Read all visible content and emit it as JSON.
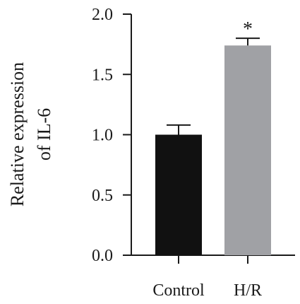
{
  "chart_data": {
    "type": "bar",
    "categories": [
      "Control",
      "H/R"
    ],
    "values": [
      1.0,
      1.74
    ],
    "errors": [
      0.08,
      0.06
    ],
    "colors": [
      "#111111",
      "#a0a1a5"
    ],
    "ylabel_lines": [
      "Relative expression",
      "of IL-6"
    ],
    "ylim": [
      0,
      2.0
    ],
    "yticks": [
      0.0,
      0.5,
      1.0,
      1.5,
      2.0
    ],
    "ytick_labels": [
      "0.0",
      "0.5",
      "1.0",
      "1.5",
      "2.0"
    ],
    "annotations": [
      {
        "category": "H/R",
        "text": "*"
      }
    ],
    "grid": false
  }
}
